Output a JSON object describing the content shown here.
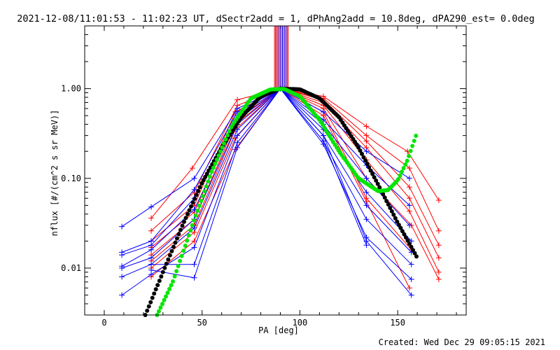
{
  "chart_data": {
    "type": "line",
    "title": "2021-12-08/11:01:53 - 11:02:23 UT, dSectr2add = 1, dPhAng2add = 10.8deg, dPA290_est=  0.0deg",
    "xlabel": "PA [deg]",
    "ylabel": "nflux [#/(cm^2 s sr MeV)]",
    "footer": "Created: Wed Dec 29 09:05:15 2021",
    "xlim": [
      -10,
      185
    ],
    "ylim": [
      0.003,
      5
    ],
    "yscale": "log",
    "grid": false,
    "xticks": [
      0,
      50,
      100,
      150
    ],
    "xtick_labels": [
      "0",
      "50",
      "100",
      "150"
    ],
    "yticks": [
      0.01,
      0.1,
      1
    ],
    "ytick_labels": [
      "0.01",
      "0.10",
      "1.00"
    ],
    "vertical_marker_lines": {
      "x_from": 87,
      "x_to": 94,
      "count": 13,
      "colors": [
        "#ff0000",
        "#0000ff",
        "#ff0000",
        "#0000ff",
        "#ff0000",
        "#0000ff",
        "#ff0000",
        "#0000ff",
        "#ff0000",
        "#0000ff",
        "#ff0000",
        "#0000ff",
        "#ff0000"
      ]
    },
    "series": [
      {
        "color": "#ff0000",
        "marker": "+",
        "x": [
          24,
          45,
          68,
          90,
          112,
          134,
          155,
          171
        ],
        "y": [
          0.036,
          0.13,
          0.75,
          1.0,
          0.82,
          0.38,
          0.2,
          0.057
        ]
      },
      {
        "color": "#ff0000",
        "marker": "+",
        "x": [
          24,
          46,
          68,
          90,
          112,
          134,
          156,
          171
        ],
        "y": [
          0.026,
          0.07,
          0.65,
          1.0,
          0.78,
          0.3,
          0.13,
          0.026
        ]
      },
      {
        "color": "#ff0000",
        "marker": "+",
        "x": [
          24,
          46,
          67,
          90,
          112,
          134,
          156,
          171
        ],
        "y": [
          0.02,
          0.05,
          0.55,
          1.0,
          0.75,
          0.26,
          0.08,
          0.018
        ]
      },
      {
        "color": "#ff0000",
        "marker": "+",
        "x": [
          24,
          46,
          67,
          90,
          112,
          134,
          156,
          171
        ],
        "y": [
          0.017,
          0.042,
          0.45,
          1.0,
          0.7,
          0.22,
          0.06,
          0.013
        ]
      },
      {
        "color": "#ff0000",
        "marker": "+",
        "x": [
          24,
          46,
          67,
          90,
          112,
          134,
          156,
          171
        ],
        "y": [
          0.014,
          0.035,
          0.4,
          1.0,
          0.65,
          0.16,
          0.043,
          0.009
        ]
      },
      {
        "color": "#ff0000",
        "marker": "+",
        "x": [
          24,
          46,
          67,
          90,
          112,
          134,
          157,
          171
        ],
        "y": [
          0.012,
          0.03,
          0.35,
          1.0,
          0.6,
          0.1,
          0.03,
          0.0075
        ]
      },
      {
        "color": "#ff0000",
        "marker": "+",
        "x": [
          24,
          46,
          67,
          90,
          112,
          134,
          157
        ],
        "y": [
          0.01,
          0.025,
          0.28,
          1.0,
          0.55,
          0.06,
          0.016
        ]
      },
      {
        "color": "#ff0000",
        "marker": "+",
        "x": [
          24,
          46,
          67,
          90,
          112,
          134,
          156
        ],
        "y": [
          0.008,
          0.02,
          0.21,
          1.0,
          0.5,
          0.055,
          0.006
        ]
      },
      {
        "color": "#0000ff",
        "marker": "+",
        "x": [
          9,
          24,
          46,
          68,
          90,
          112,
          134,
          156
        ],
        "y": [
          0.029,
          0.048,
          0.1,
          0.6,
          1.0,
          0.55,
          0.2,
          0.1
        ]
      },
      {
        "color": "#0000ff",
        "marker": "+",
        "x": [
          9,
          24,
          46,
          68,
          90,
          112,
          134,
          156
        ],
        "y": [
          0.015,
          0.02,
          0.075,
          0.55,
          1.0,
          0.45,
          0.14,
          0.05
        ]
      },
      {
        "color": "#0000ff",
        "marker": "+",
        "x": [
          9,
          24,
          46,
          68,
          90,
          112,
          134,
          156
        ],
        "y": [
          0.014,
          0.018,
          0.06,
          0.5,
          1.0,
          0.4,
          0.1,
          0.03
        ]
      },
      {
        "color": "#0000ff",
        "marker": "+",
        "x": [
          9,
          24,
          46,
          68,
          90,
          112,
          134,
          157
        ],
        "y": [
          0.0105,
          0.016,
          0.045,
          0.45,
          1.0,
          0.35,
          0.07,
          0.02
        ]
      },
      {
        "color": "#0000ff",
        "marker": "+",
        "x": [
          9,
          24,
          46,
          68,
          90,
          112,
          134,
          157
        ],
        "y": [
          0.01,
          0.013,
          0.035,
          0.4,
          1.0,
          0.3,
          0.05,
          0.015
        ]
      },
      {
        "color": "#0000ff",
        "marker": "+",
        "x": [
          9,
          24,
          46,
          68,
          90,
          112,
          134,
          157
        ],
        "y": [
          0.008,
          0.011,
          0.028,
          0.35,
          1.0,
          0.26,
          0.035,
          0.011
        ]
      },
      {
        "color": "#0000ff",
        "marker": "+",
        "x": [
          9,
          24,
          46,
          68,
          90,
          112,
          134,
          157
        ],
        "y": [
          0.005,
          0.0085,
          0.017,
          0.3,
          1.0,
          0.24,
          0.022,
          0.0075
        ]
      },
      {
        "color": "#0000ff",
        "marker": "+",
        "x": [
          24,
          46,
          68,
          90,
          112,
          134,
          157
        ],
        "y": [
          0.011,
          0.011,
          0.25,
          1.0,
          0.3,
          0.02,
          0.005
        ]
      },
      {
        "color": "#0000ff",
        "marker": "+",
        "x": [
          24,
          46,
          68,
          90,
          112,
          134
        ],
        "y": [
          0.0095,
          0.0078,
          0.22,
          1.0,
          0.26,
          0.018
        ]
      }
    ],
    "fits": [
      {
        "color": "#000000",
        "style": "dots",
        "x_range": [
          21,
          160
        ],
        "x": [
          21,
          30,
          40,
          50,
          60,
          70,
          80,
          90,
          100,
          110,
          120,
          130,
          140,
          150,
          160
        ],
        "y": [
          0.003,
          0.009,
          0.03,
          0.09,
          0.22,
          0.48,
          0.82,
          1.0,
          0.98,
          0.78,
          0.48,
          0.22,
          0.085,
          0.032,
          0.013
        ]
      },
      {
        "color": "#00e600",
        "style": "dots",
        "x_range": [
          27,
          160
        ],
        "x": [
          27,
          35,
          45,
          55,
          65,
          75,
          85,
          92,
          100,
          110,
          120,
          130,
          140,
          145,
          150,
          155,
          160
        ],
        "y": [
          0.003,
          0.007,
          0.03,
          0.12,
          0.38,
          0.78,
          0.98,
          0.99,
          0.82,
          0.45,
          0.2,
          0.1,
          0.072,
          0.074,
          0.095,
          0.16,
          0.33
        ]
      }
    ]
  }
}
